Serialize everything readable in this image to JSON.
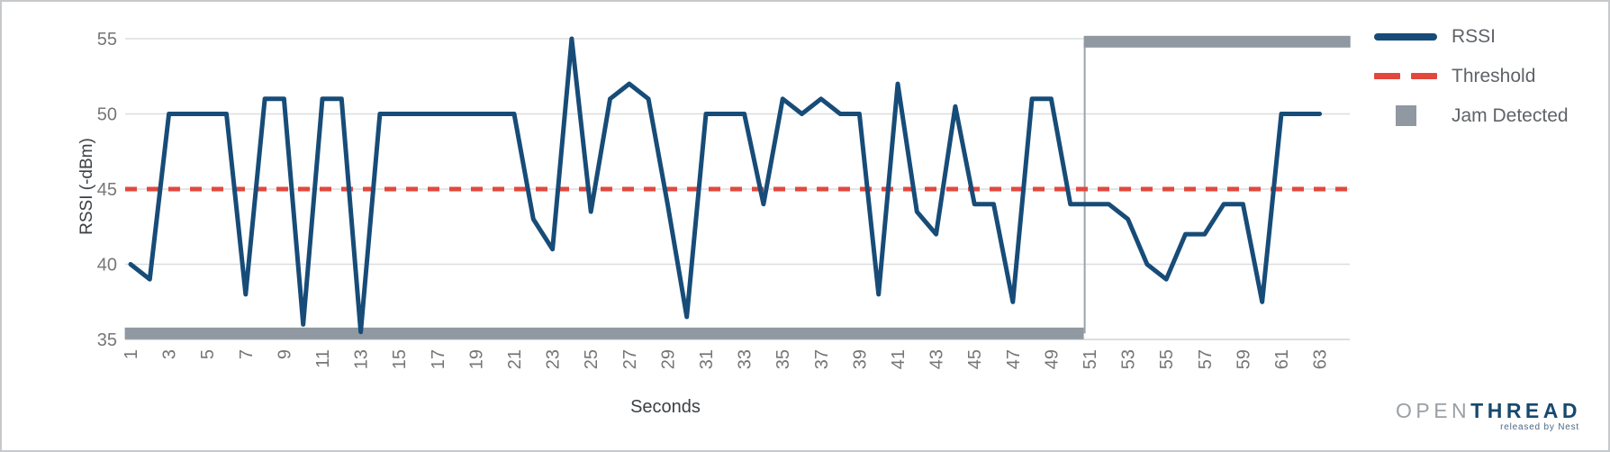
{
  "chart_data": {
    "type": "line",
    "title": "",
    "xlabel": "Seconds",
    "ylabel": "RSSI (-dBm)",
    "grid": true,
    "legend_position": "right",
    "ylim": [
      35,
      55
    ],
    "y_ticks": [
      35,
      40,
      45,
      50,
      55
    ],
    "x_tick_labels": [
      1,
      3,
      5,
      7,
      9,
      11,
      13,
      15,
      17,
      19,
      21,
      23,
      25,
      27,
      29,
      31,
      33,
      35,
      37,
      39,
      41,
      43,
      45,
      47,
      49,
      51,
      53,
      55,
      57,
      59,
      61,
      63
    ],
    "x_range": [
      1,
      63
    ],
    "series": [
      {
        "name": "RSSI",
        "type": "line",
        "color": "#174C78",
        "x_start": 1,
        "values": [
          40,
          39,
          50,
          50,
          50,
          50,
          38,
          51,
          51,
          36,
          51,
          51,
          35.5,
          50,
          50,
          50,
          50,
          50,
          50,
          50,
          50,
          43,
          41,
          55,
          43.5,
          51,
          52,
          51,
          44,
          36.5,
          50,
          50,
          50,
          44,
          51,
          50,
          51,
          50,
          50,
          38,
          52,
          43.5,
          42,
          50.5,
          44,
          44,
          37.5,
          51,
          51,
          44,
          44,
          44,
          43,
          40,
          39,
          42,
          42,
          44,
          44,
          37.5,
          50,
          50,
          50
        ]
      },
      {
        "name": "Threshold",
        "type": "threshold",
        "color": "#E2483D",
        "value": 45
      },
      {
        "name": "Jam Detected",
        "type": "state-band",
        "color": "#9098A1",
        "connector_color": "#9CA3AA",
        "low_level": 35.4,
        "high_level": 54.8,
        "low_span": [
          0.7,
          50.7
        ],
        "high_span": [
          50.7,
          64.6
        ],
        "transition_x": 50.7
      }
    ]
  },
  "legend": {
    "items": [
      "RSSI",
      "Threshold",
      "Jam Detected"
    ]
  },
  "branding": {
    "logo_open": "OPEN",
    "logo_thread": "THREAD",
    "logo_sub": "released by Nest"
  }
}
